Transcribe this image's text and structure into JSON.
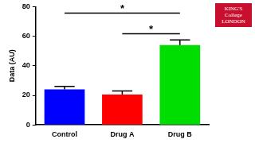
{
  "chart_data": {
    "type": "bar",
    "y_label": "Data (AU)",
    "categories": [
      "Control",
      "Drug A",
      "Drug B"
    ],
    "values": [
      24,
      20.5,
      54
    ],
    "errors": [
      2,
      2.5,
      3.5
    ],
    "colors": [
      "#0000ff",
      "#ff0000",
      "#00dd00"
    ],
    "ylim": [
      0,
      80
    ],
    "yticks": [
      0,
      20,
      40,
      60,
      80
    ],
    "grid": false,
    "annotations": [
      {
        "text": "*",
        "between": [
          "Control",
          "Drug B"
        ]
      },
      {
        "text": "*",
        "between": [
          "Drug A",
          "Drug B"
        ]
      }
    ],
    "logo": [
      "KING'S",
      "College",
      "LONDON"
    ]
  }
}
